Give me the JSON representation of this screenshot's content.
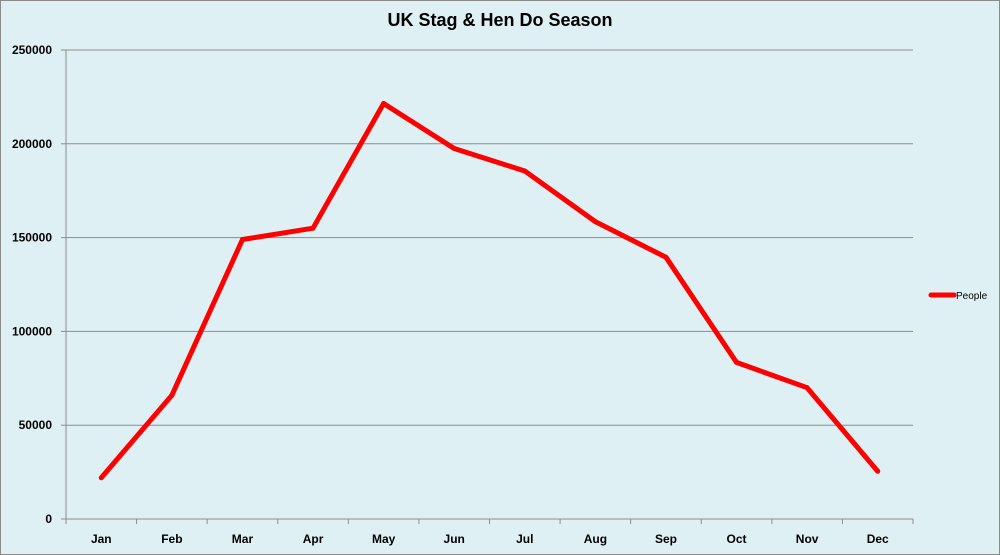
{
  "chart_data": {
    "type": "line",
    "title": "UK Stag & Hen Do Season",
    "xlabel": "",
    "ylabel": "",
    "categories": [
      "Jan",
      "Feb",
      "Mar",
      "Apr",
      "May",
      "Jun",
      "Jul",
      "Aug",
      "Sep",
      "Oct",
      "Nov",
      "Dec"
    ],
    "series": [
      {
        "name": "People",
        "color": "#ff0000",
        "values": [
          22000,
          66000,
          149000,
          155000,
          221500,
          197500,
          185500,
          158500,
          139500,
          83500,
          70000,
          25500
        ]
      }
    ],
    "ylim": [
      0,
      250000
    ],
    "yticks": [
      "0",
      "50000",
      "100000",
      "150000",
      "200000",
      "250000"
    ],
    "grid": true,
    "legend_position": "right",
    "background_color": "#dff0f5"
  }
}
